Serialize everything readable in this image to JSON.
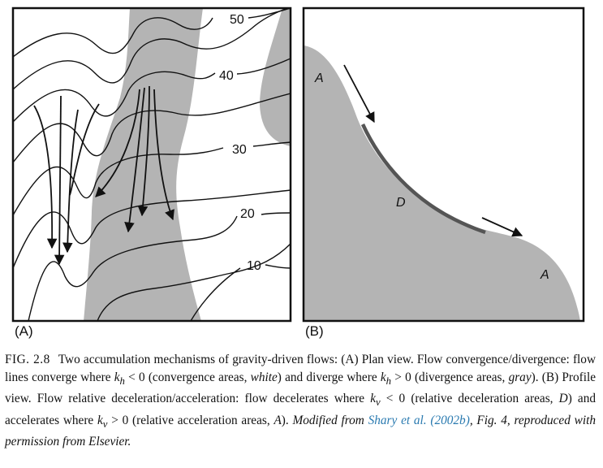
{
  "panel_a": {
    "label": "(A)",
    "contour_labels": [
      "50",
      "40",
      "30",
      "20",
      "10"
    ]
  },
  "panel_b": {
    "label": "(B)",
    "area_labels": [
      "A",
      "D",
      "A"
    ]
  },
  "colors": {
    "gray_area": "#b4b4b4",
    "deceleration_segment": "#555555",
    "frame": "#111111"
  },
  "caption": {
    "fig_number": "FIG. 2.8",
    "part1": "Two accumulation mechanisms of gravity-driven flows: (A) Plan view. Flow convergence/divergence: flow lines converge where ",
    "k_h_lt": "k",
    "sub_h": "h",
    "lt_zero": " < 0 (convergence areas, ",
    "white": "white",
    "part2": ") and diverge where ",
    "k_h_gt": "k",
    "sub_h2": "h",
    "gt_zero": " > 0 (divergence areas, ",
    "gray": "gray",
    "part3": "). (B) Profile view. Flow relative deceleration/acceleration: flow decelerates where ",
    "k_v_lt": "k",
    "sub_v": "v",
    "lt_zero_v": " < 0 (relative deceleration areas, ",
    "D": "D",
    "part4": ") and accelerates where ",
    "k_v_gt": "k",
    "sub_v2": "v",
    "gt_zero_v": " > 0 (relative acceleration areas, ",
    "A": "A",
    "part5": "). ",
    "modified": "Modified from ",
    "citation": "Shary et al. (2002b)",
    "rest": ", Fig. 4, reproduced with permission from Elsevier."
  }
}
